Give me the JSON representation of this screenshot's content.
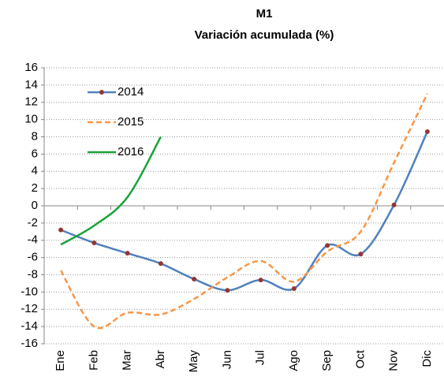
{
  "chart_data": {
    "type": "line",
    "title": "M1",
    "subtitle": "Variación acumulada (%)",
    "categories": [
      "Ene",
      "Feb",
      "Mar",
      "Abr",
      "May",
      "Jun",
      "Jul",
      "Ago",
      "Sep",
      "Oct",
      "Nov",
      "Dic"
    ],
    "series": [
      {
        "name": "2014",
        "color": "#4f81bd",
        "marker_color": "#943634",
        "dash": "solid",
        "values": [
          -2.8,
          -4.3,
          -5.5,
          -6.7,
          -8.5,
          -9.8,
          -8.6,
          -9.6,
          -4.6,
          -5.6,
          0.1,
          8.6
        ]
      },
      {
        "name": "2015",
        "color": "#f79646",
        "dash": "dashed",
        "values": [
          -7.5,
          -14,
          -12.4,
          -12.6,
          -10.8,
          -8.3,
          -6.4,
          -8.8,
          -5.3,
          -3,
          5,
          13
        ]
      },
      {
        "name": "2016",
        "color": "#1aa33a",
        "dash": "solid",
        "values": [
          -4.5,
          -2.3,
          1,
          8,
          null,
          null,
          null,
          null,
          null,
          null,
          null,
          null
        ]
      }
    ],
    "ylim": [
      -16,
      16
    ],
    "yticks": [
      -16,
      -14,
      -12,
      -10,
      -8,
      -6,
      -4,
      -2,
      0,
      2,
      4,
      6,
      8,
      10,
      12,
      14,
      16
    ],
    "grid": true,
    "legend": "top-left"
  }
}
